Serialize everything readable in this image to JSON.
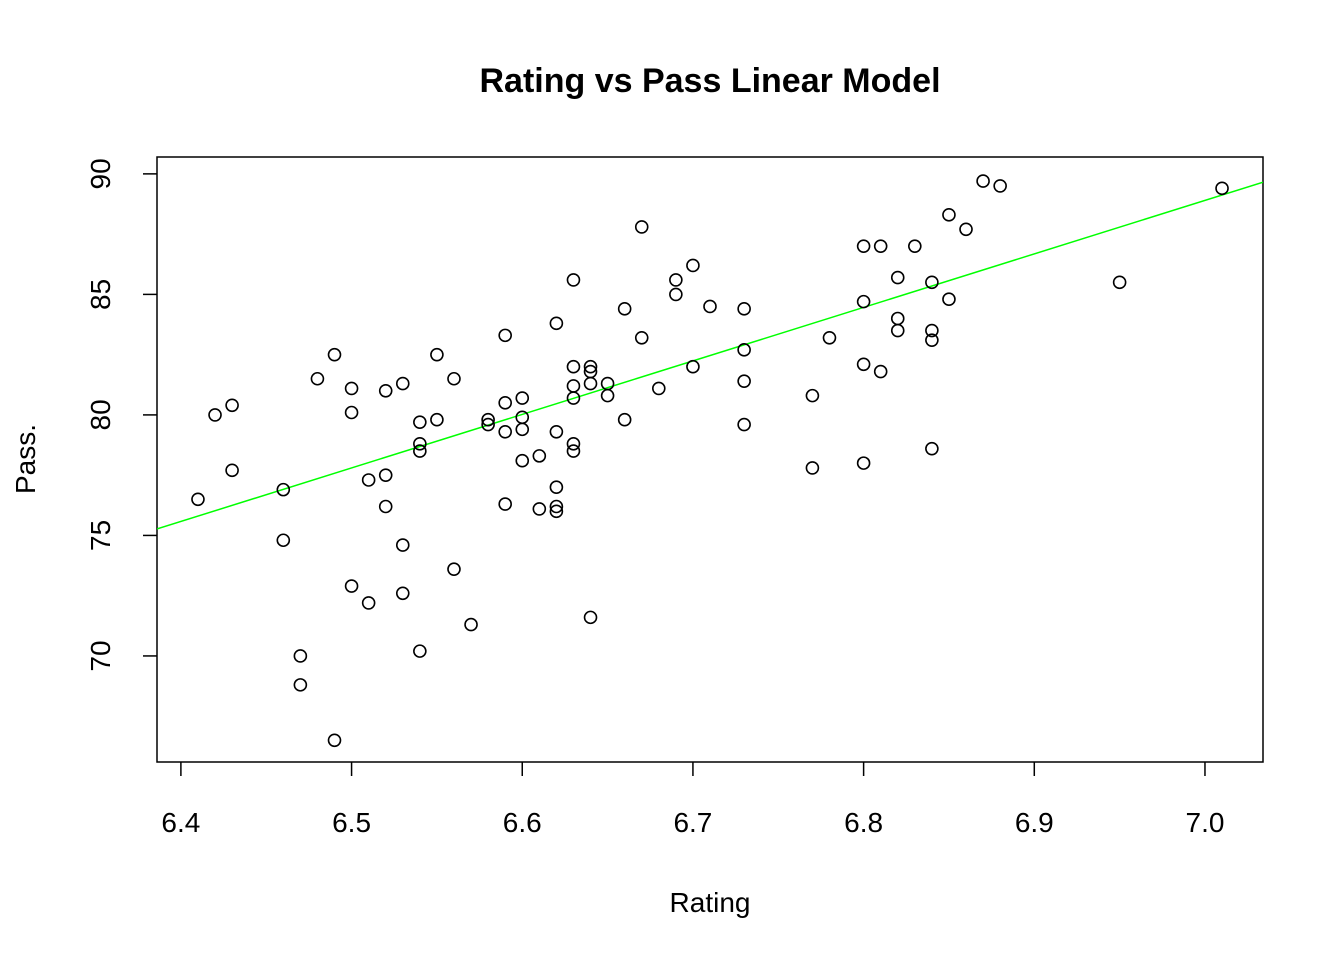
{
  "chart_data": {
    "type": "scatter",
    "title": "Rating vs Pass Linear Model",
    "xlabel": "Rating",
    "ylabel": "Pass.",
    "xlim": [
      6.386,
      7.034
    ],
    "ylim": [
      65.6,
      90.7
    ],
    "x_ticks": [
      6.4,
      6.5,
      6.6,
      6.7,
      6.8,
      6.9,
      7.0
    ],
    "x_tick_labels": [
      "6.4",
      "6.5",
      "6.6",
      "6.7",
      "6.8",
      "6.9",
      "7.0"
    ],
    "y_ticks": [
      70,
      75,
      80,
      85,
      90
    ],
    "y_tick_labels": [
      "70",
      "75",
      "80",
      "85",
      "90"
    ],
    "grid": false,
    "point_color": "#000000",
    "fit_line": {
      "intercept": -66.5,
      "slope": 22.2,
      "color": "#00ff00"
    },
    "points": [
      {
        "x": 6.41,
        "y": 76.5
      },
      {
        "x": 6.42,
        "y": 80.0
      },
      {
        "x": 6.43,
        "y": 80.4
      },
      {
        "x": 6.43,
        "y": 77.7
      },
      {
        "x": 6.46,
        "y": 76.9
      },
      {
        "x": 6.46,
        "y": 74.8
      },
      {
        "x": 6.47,
        "y": 70.0
      },
      {
        "x": 6.47,
        "y": 68.8
      },
      {
        "x": 6.48,
        "y": 81.5
      },
      {
        "x": 6.49,
        "y": 82.5
      },
      {
        "x": 6.49,
        "y": 66.5
      },
      {
        "x": 6.5,
        "y": 81.1
      },
      {
        "x": 6.5,
        "y": 80.1
      },
      {
        "x": 6.5,
        "y": 72.9
      },
      {
        "x": 6.51,
        "y": 77.3
      },
      {
        "x": 6.51,
        "y": 72.2
      },
      {
        "x": 6.52,
        "y": 81.0
      },
      {
        "x": 6.52,
        "y": 77.5
      },
      {
        "x": 6.52,
        "y": 76.2
      },
      {
        "x": 6.53,
        "y": 81.3
      },
      {
        "x": 6.53,
        "y": 74.6
      },
      {
        "x": 6.53,
        "y": 72.6
      },
      {
        "x": 6.54,
        "y": 79.7
      },
      {
        "x": 6.54,
        "y": 78.8
      },
      {
        "x": 6.54,
        "y": 78.5
      },
      {
        "x": 6.54,
        "y": 70.2
      },
      {
        "x": 6.55,
        "y": 82.5
      },
      {
        "x": 6.55,
        "y": 79.8
      },
      {
        "x": 6.56,
        "y": 81.5
      },
      {
        "x": 6.56,
        "y": 73.6
      },
      {
        "x": 6.57,
        "y": 71.3
      },
      {
        "x": 6.58,
        "y": 79.8
      },
      {
        "x": 6.58,
        "y": 79.6
      },
      {
        "x": 6.59,
        "y": 83.3
      },
      {
        "x": 6.59,
        "y": 80.5
      },
      {
        "x": 6.59,
        "y": 79.3
      },
      {
        "x": 6.59,
        "y": 76.3
      },
      {
        "x": 6.6,
        "y": 80.7
      },
      {
        "x": 6.6,
        "y": 79.9
      },
      {
        "x": 6.6,
        "y": 79.4
      },
      {
        "x": 6.6,
        "y": 78.1
      },
      {
        "x": 6.61,
        "y": 78.3
      },
      {
        "x": 6.61,
        "y": 76.1
      },
      {
        "x": 6.62,
        "y": 83.8
      },
      {
        "x": 6.62,
        "y": 79.3
      },
      {
        "x": 6.62,
        "y": 77.0
      },
      {
        "x": 6.62,
        "y": 76.2
      },
      {
        "x": 6.62,
        "y": 76.0
      },
      {
        "x": 6.63,
        "y": 85.6
      },
      {
        "x": 6.63,
        "y": 82.0
      },
      {
        "x": 6.63,
        "y": 81.2
      },
      {
        "x": 6.63,
        "y": 80.7
      },
      {
        "x": 6.63,
        "y": 78.8
      },
      {
        "x": 6.63,
        "y": 78.5
      },
      {
        "x": 6.64,
        "y": 82.0
      },
      {
        "x": 6.64,
        "y": 81.8
      },
      {
        "x": 6.64,
        "y": 81.3
      },
      {
        "x": 6.64,
        "y": 71.6
      },
      {
        "x": 6.65,
        "y": 81.3
      },
      {
        "x": 6.65,
        "y": 80.8
      },
      {
        "x": 6.66,
        "y": 84.4
      },
      {
        "x": 6.66,
        "y": 79.8
      },
      {
        "x": 6.67,
        "y": 87.8
      },
      {
        "x": 6.67,
        "y": 83.2
      },
      {
        "x": 6.68,
        "y": 81.1
      },
      {
        "x": 6.69,
        "y": 85.6
      },
      {
        "x": 6.69,
        "y": 85.0
      },
      {
        "x": 6.7,
        "y": 86.2
      },
      {
        "x": 6.7,
        "y": 82.0
      },
      {
        "x": 6.71,
        "y": 84.5
      },
      {
        "x": 6.73,
        "y": 84.4
      },
      {
        "x": 6.73,
        "y": 82.7
      },
      {
        "x": 6.73,
        "y": 81.4
      },
      {
        "x": 6.73,
        "y": 79.6
      },
      {
        "x": 6.77,
        "y": 80.8
      },
      {
        "x": 6.77,
        "y": 77.8
      },
      {
        "x": 6.78,
        "y": 83.2
      },
      {
        "x": 6.8,
        "y": 87.0
      },
      {
        "x": 6.8,
        "y": 84.7
      },
      {
        "x": 6.8,
        "y": 82.1
      },
      {
        "x": 6.8,
        "y": 78.0
      },
      {
        "x": 6.81,
        "y": 87.0
      },
      {
        "x": 6.81,
        "y": 81.8
      },
      {
        "x": 6.82,
        "y": 85.7
      },
      {
        "x": 6.82,
        "y": 84.0
      },
      {
        "x": 6.82,
        "y": 83.5
      },
      {
        "x": 6.83,
        "y": 87.0
      },
      {
        "x": 6.84,
        "y": 85.5
      },
      {
        "x": 6.84,
        "y": 83.5
      },
      {
        "x": 6.84,
        "y": 83.1
      },
      {
        "x": 6.84,
        "y": 78.6
      },
      {
        "x": 6.85,
        "y": 88.3
      },
      {
        "x": 6.85,
        "y": 84.8
      },
      {
        "x": 6.86,
        "y": 87.7
      },
      {
        "x": 6.87,
        "y": 89.7
      },
      {
        "x": 6.88,
        "y": 89.5
      },
      {
        "x": 6.95,
        "y": 85.5
      },
      {
        "x": 7.01,
        "y": 89.4
      }
    ]
  }
}
